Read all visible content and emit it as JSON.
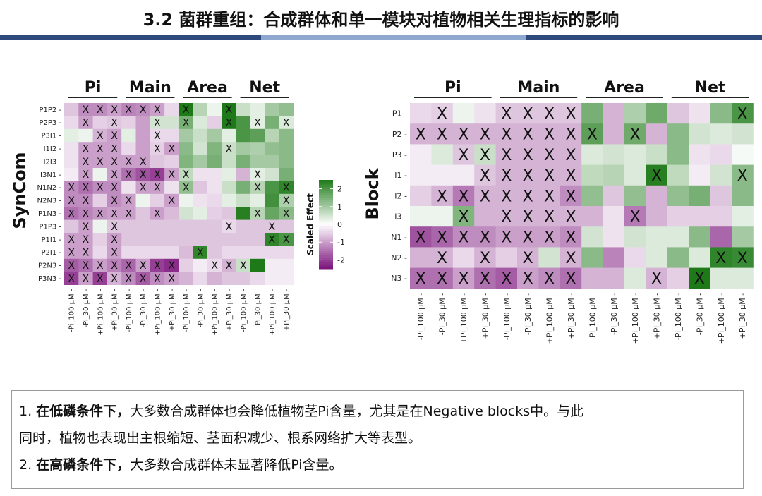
{
  "header": {
    "title": "3.2 菌群重组：合成群体和单一模块对植物相关生理指标的影响",
    "bar_colors": [
      "#2e4a7d",
      "#8fa8d0",
      "#2e4a7d"
    ]
  },
  "chart_data": [
    {
      "type": "heatmap",
      "y_axis_title": "SynCom",
      "group_labels": [
        "Pi",
        "Main",
        "Area",
        "Net"
      ],
      "columns": [
        "-Pi_100 μM",
        "-Pi_30 μM",
        "+Pi_100 μM",
        "+Pi_30 μM",
        "-Pi_100 μM",
        "-Pi_30 μM",
        "+Pi_100 μM",
        "+Pi_30 μM",
        "-Pi_100 μM",
        "-Pi_30 μM",
        "+Pi_100 μM",
        "+Pi_30 μM",
        "-Pi_100 μM",
        "-Pi_30 μM",
        "+Pi_100 μM",
        "+Pi_30 μM"
      ],
      "rows": [
        "P1P2",
        "P2P3",
        "P3I1",
        "I1I2",
        "I2I3",
        "I3N1",
        "N1N2",
        "N2N3",
        "P1N3",
        "P1P3",
        "P1I1",
        "P2I1",
        "P2N3",
        "P3N3"
      ],
      "values": [
        [
          -0.6,
          -1.2,
          -1.2,
          -1.0,
          -1.3,
          -1.2,
          -1.0,
          -0.4,
          2.6,
          0.8,
          0.2,
          2.6,
          0.6,
          0.3,
          1.0,
          1.2
        ],
        [
          -0.4,
          -1.0,
          -0.5,
          -0.6,
          -0.5,
          -1.0,
          0.5,
          0.5,
          1.5,
          0.4,
          -0.5,
          2.5,
          2.0,
          0.3,
          1.5,
          0.4
        ],
        [
          0.3,
          0.2,
          -0.8,
          -1.0,
          0.3,
          -1.0,
          -0.4,
          -0.4,
          1.0,
          0.6,
          1.0,
          0.3,
          2.0,
          1.8,
          0.8,
          1.3
        ],
        [
          -0.3,
          -1.0,
          -1.0,
          -1.0,
          -0.4,
          -1.0,
          -0.5,
          -1.0,
          1.3,
          0.5,
          1.4,
          0.6,
          1.0,
          0.9,
          1.2,
          1.3
        ],
        [
          -0.3,
          -1.0,
          -1.0,
          -1.0,
          -1.0,
          -1.0,
          -0.6,
          -0.5,
          1.4,
          1.0,
          1.5,
          0.6,
          1.5,
          1.0,
          1.0,
          1.3
        ],
        [
          -0.2,
          -1.0,
          0.2,
          -1.0,
          -1.5,
          -1.8,
          -2.0,
          -1.0,
          0.7,
          -0.3,
          -0.3,
          0.3,
          -0.8,
          0.3,
          0.5,
          1.5
        ],
        [
          -1.2,
          -1.5,
          -1.2,
          -1.2,
          -0.3,
          -1.0,
          -1.0,
          -0.3,
          1.2,
          -0.6,
          -0.3,
          0.6,
          1.5,
          0.8,
          2.0,
          2.3
        ],
        [
          -1.2,
          -1.2,
          -0.5,
          -1.2,
          -1.0,
          0.2,
          -0.5,
          -1.0,
          0.2,
          -0.3,
          -0.4,
          0.3,
          0.6,
          0.3,
          2.1,
          0.9
        ],
        [
          -1.5,
          -1.3,
          -1.1,
          -1.0,
          -1.0,
          -0.6,
          -1.0,
          -0.7,
          0.5,
          0.3,
          -0.5,
          -0.6,
          2.4,
          0.8,
          1.7,
          1.3
        ],
        [
          -0.6,
          -1.0,
          0.2,
          -0.6,
          -0.6,
          -0.6,
          -0.6,
          -0.6,
          -0.6,
          -0.6,
          -0.6,
          -0.4,
          -0.6,
          -0.6,
          -0.6,
          -0.6
        ],
        [
          -1.0,
          -1.0,
          -0.5,
          -1.0,
          -0.6,
          -0.6,
          -0.6,
          -0.6,
          -0.6,
          -0.6,
          -0.6,
          -0.6,
          -0.6,
          -0.6,
          2.3,
          2.0
        ],
        [
          -1.0,
          -1.0,
          -0.4,
          -1.0,
          -0.4,
          -0.4,
          -0.4,
          -0.4,
          -0.7,
          2.3,
          -0.6,
          -0.4,
          -0.4,
          -0.4,
          -0.4,
          -0.4
        ],
        [
          -1.7,
          -1.5,
          -1.0,
          -1.3,
          -1.6,
          -1.0,
          -2.0,
          -2.2,
          -0.5,
          -0.2,
          -0.4,
          -0.8,
          0.6,
          2.5,
          -0.2,
          -0.2
        ],
        [
          -2.0,
          -1.0,
          -2.0,
          -0.8,
          -1.2,
          -1.7,
          -1.2,
          -1.0,
          -0.8,
          -0.4,
          -0.8,
          -0.6,
          -0.6,
          -0.4,
          -0.2,
          -0.2
        ]
      ],
      "x_marks": [
        [
          1,
          2,
          3,
          4,
          5,
          6,
          8,
          11
        ],
        [
          1,
          3,
          6,
          8,
          11,
          13,
          15
        ],
        [
          2,
          3,
          6
        ],
        [
          1,
          2,
          3,
          6,
          7,
          11
        ],
        [
          1,
          2,
          3,
          4,
          5
        ],
        [
          1,
          3,
          4,
          5,
          6,
          7,
          8,
          13
        ],
        [
          0,
          1,
          2,
          3,
          5,
          6,
          8,
          13,
          15
        ],
        [
          0,
          1,
          3,
          4,
          7,
          15
        ],
        [
          0,
          1,
          2,
          3,
          4,
          6,
          13,
          15
        ],
        [
          1,
          3,
          11,
          14
        ],
        [
          0,
          1,
          3,
          14,
          15
        ],
        [
          0,
          1,
          3,
          9
        ],
        [
          0,
          1,
          2,
          3,
          4,
          5,
          6,
          7,
          10,
          11,
          12
        ],
        [
          0,
          1,
          2,
          3,
          4,
          5,
          6,
          7
        ]
      ],
      "legend": {
        "title": "Scaled Effect",
        "ticks": [
          2,
          1,
          0,
          -1,
          -2
        ]
      },
      "colors": {
        "low": "#7a107a",
        "mid": "#ffffff",
        "high": "#1e7a18"
      }
    },
    {
      "type": "heatmap",
      "y_axis_title": "Block",
      "group_labels": [
        "Pi",
        "Main",
        "Area",
        "Net"
      ],
      "columns": [
        "-Pi_100 μM",
        "-Pi_30 μM",
        "+Pi_100 μM",
        "+Pi_30 μM",
        "-Pi_100 μM",
        "-Pi_30 μM",
        "+Pi_100 μM",
        "+Pi_30 μM",
        "-Pi_100 μM",
        "-Pi_30 μM",
        "+Pi_100 μM",
        "+Pi_30 μM",
        "-Pi_100 μM",
        "-Pi_30 μM",
        "+Pi_100 μM",
        "+Pi_30 μM"
      ],
      "rows": [
        "P1",
        "P2",
        "P3",
        "I1",
        "I2",
        "I3",
        "N1",
        "N2",
        "N3"
      ],
      "values": [
        [
          -0.4,
          -0.5,
          0.2,
          -0.3,
          -0.6,
          -0.6,
          -0.6,
          -0.6,
          1.5,
          -0.8,
          0.9,
          1.6,
          -0.6,
          -0.3,
          1.3,
          2.0
        ],
        [
          -0.8,
          -0.8,
          -0.8,
          -0.8,
          -0.8,
          -0.8,
          -0.8,
          -0.8,
          1.8,
          -0.8,
          1.6,
          -0.8,
          1.3,
          0.5,
          0.4,
          0.5
        ],
        [
          -0.2,
          0.4,
          -0.6,
          0.6,
          -0.8,
          -0.8,
          -0.8,
          -0.8,
          0.4,
          0.5,
          0.4,
          0.6,
          1.3,
          -0.3,
          -0.4,
          0.1
        ],
        [
          -0.2,
          -0.2,
          -0.2,
          -0.6,
          -0.8,
          -0.8,
          -0.8,
          -0.8,
          0.7,
          0.8,
          0.4,
          2.4,
          0.7,
          -0.2,
          0.5,
          1.3
        ],
        [
          -0.5,
          -0.8,
          -1.4,
          -0.8,
          -0.8,
          -0.8,
          -0.8,
          -1.2,
          1.2,
          -0.6,
          1.2,
          -0.8,
          1.2,
          1.5,
          -0.6,
          1.3
        ],
        [
          0.2,
          0.2,
          1.4,
          -0.8,
          -0.8,
          -0.8,
          -0.8,
          -0.8,
          -0.8,
          -0.3,
          -1.4,
          -0.8,
          -0.5,
          -0.5,
          -0.5,
          0.3
        ],
        [
          -1.8,
          -1.6,
          -1.2,
          -1.2,
          -1.0,
          -1.0,
          -1.0,
          -1.2,
          0.5,
          -0.3,
          0.5,
          0.4,
          0.4,
          1.3,
          -1.6,
          1.0
        ],
        [
          -0.8,
          -0.8,
          -0.4,
          -0.8,
          -0.5,
          -0.8,
          0.5,
          -0.8,
          1.3,
          -1.3,
          -0.4,
          0.4,
          1.3,
          0.4,
          2.3,
          2.2
        ],
        [
          -1.5,
          -1.5,
          -1.0,
          -1.5,
          -1.7,
          -1.0,
          -1.2,
          -1.5,
          -0.8,
          -0.8,
          0.4,
          -0.8,
          -0.5,
          2.5,
          0.4,
          0.4
        ]
      ],
      "x_marks": [
        [
          1,
          4,
          5,
          6,
          7,
          15
        ],
        [
          0,
          1,
          2,
          3,
          4,
          5,
          6,
          7,
          8,
          10
        ],
        [
          2,
          3,
          4,
          5,
          6,
          7
        ],
        [
          3,
          4,
          5,
          6,
          7,
          11,
          15
        ],
        [
          1,
          2,
          3,
          4,
          5,
          6,
          7
        ],
        [
          2,
          4,
          5,
          6,
          7,
          10
        ],
        [
          0,
          1,
          2,
          3,
          4,
          5,
          6,
          7
        ],
        [
          1,
          3,
          5,
          7,
          14,
          15
        ],
        [
          0,
          1,
          2,
          3,
          4,
          5,
          6,
          7,
          11,
          13
        ]
      ],
      "colors": {
        "low": "#7a107a",
        "mid": "#ffffff",
        "high": "#1e7a18"
      }
    }
  ],
  "notes": {
    "line1_bold": "在低磷条件下，",
    "line1_text": "大多数合成群体也会降低植物茎Pi含量，尤其是在Negative blocks中。与此",
    "line1_num": "1. ",
    "line2_text": "同时，植物也表现出主根缩短、茎面积减少、根系网络扩大等表型。",
    "line3_num": "2. ",
    "line3_bold": "在高磷条件下，",
    "line3_text": "大多数合成群体未显著降低Pi含量。"
  }
}
